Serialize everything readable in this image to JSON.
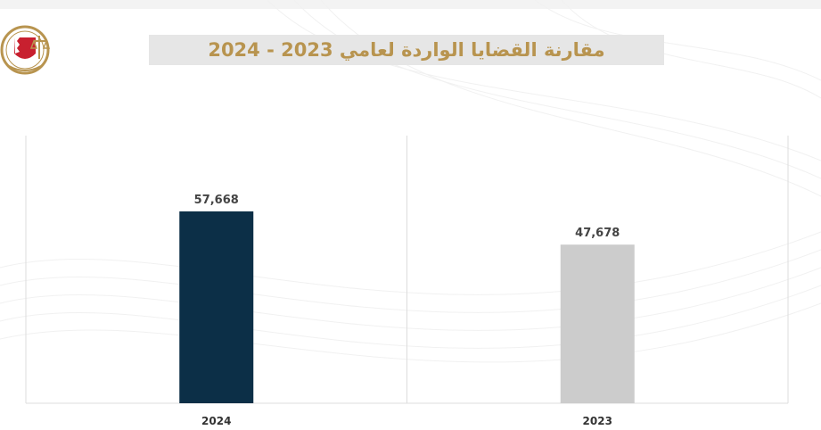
{
  "header": {
    "title": "مقارنة القضايا الواردة لعامي 2023 - 2024"
  },
  "logo": {
    "icon": "emblem-icon"
  },
  "colors": {
    "title": "#b8944f",
    "title_background": "#e6e6e6",
    "bar_2024": "#0c2f47",
    "bar_2023": "#cccccc",
    "panel_border": "#dddddd"
  },
  "chart_data": {
    "type": "bar",
    "categories": [
      "2024",
      "2023"
    ],
    "values": [
      57668,
      47678
    ],
    "value_labels": [
      "57,668",
      "47,678"
    ],
    "colors": [
      "#0c2f47",
      "#cccccc"
    ],
    "title": "مقارنة القضايا الواردة لعامي 2023 - 2024",
    "xlabel": "",
    "ylabel": "",
    "ylim": [
      0,
      65000
    ],
    "grid": false,
    "legend": "none"
  }
}
